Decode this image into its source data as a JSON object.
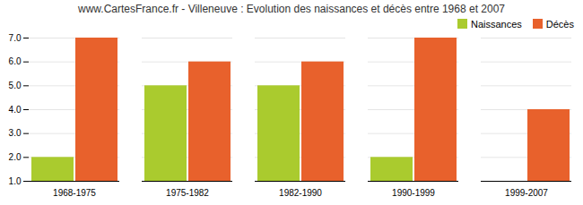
{
  "chart_data": {
    "type": "bar",
    "title": "www.CartesFrance.fr - Villeneuve : Evolution des naissances et décès entre 1968 et 2007",
    "categories": [
      "1968-1975",
      "1975-1982",
      "1982-1990",
      "1990-1999",
      "1999-2007"
    ],
    "series": [
      {
        "name": "Naissances",
        "color": "#aacb2e",
        "values": [
          2,
          5,
          5,
          2,
          1
        ]
      },
      {
        "name": "Décès",
        "color": "#e8612c",
        "values": [
          7,
          6,
          6,
          7,
          4
        ]
      }
    ],
    "ylim": [
      1,
      7
    ],
    "yticks": [
      1,
      2,
      3,
      4,
      5,
      6,
      7
    ],
    "grid": true,
    "legend": "upper right"
  }
}
